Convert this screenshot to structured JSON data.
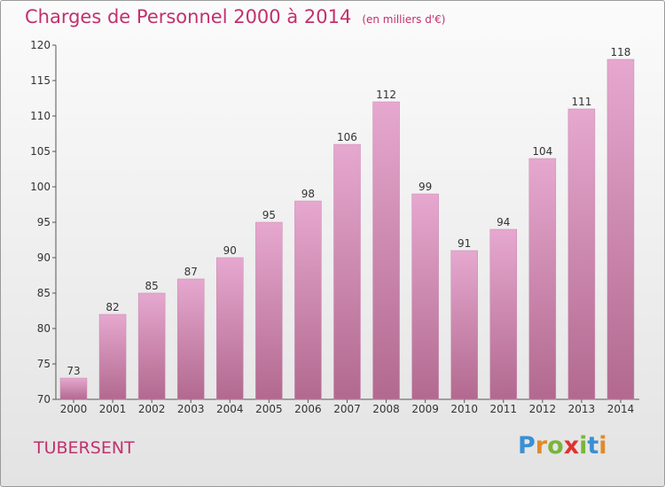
{
  "chart_data": {
    "type": "bar",
    "title": "Charges de Personnel 2000 à 2014",
    "unit_note": "(en milliers d'€)",
    "categories": [
      "2000",
      "2001",
      "2002",
      "2003",
      "2004",
      "2005",
      "2006",
      "2007",
      "2008",
      "2009",
      "2010",
      "2011",
      "2012",
      "2013",
      "2014"
    ],
    "values": [
      73,
      82,
      85,
      87,
      90,
      95,
      98,
      106,
      112,
      99,
      91,
      94,
      104,
      111,
      118
    ],
    "ylim": [
      70,
      120
    ],
    "yticks": [
      70,
      75,
      80,
      85,
      90,
      95,
      100,
      105,
      110,
      115,
      120
    ],
    "grid": false,
    "bar_color_top": "#e6a8cf",
    "bar_color_bottom": "#b2698f"
  },
  "place_name": "TUBERSENT",
  "logo": {
    "text": "Proxiti",
    "letter_colors": [
      "#3a8fd4",
      "#e08a2a",
      "#7ab53a",
      "#e0322f",
      "#7ab53a",
      "#3a8fd4",
      "#e08a2a"
    ]
  }
}
